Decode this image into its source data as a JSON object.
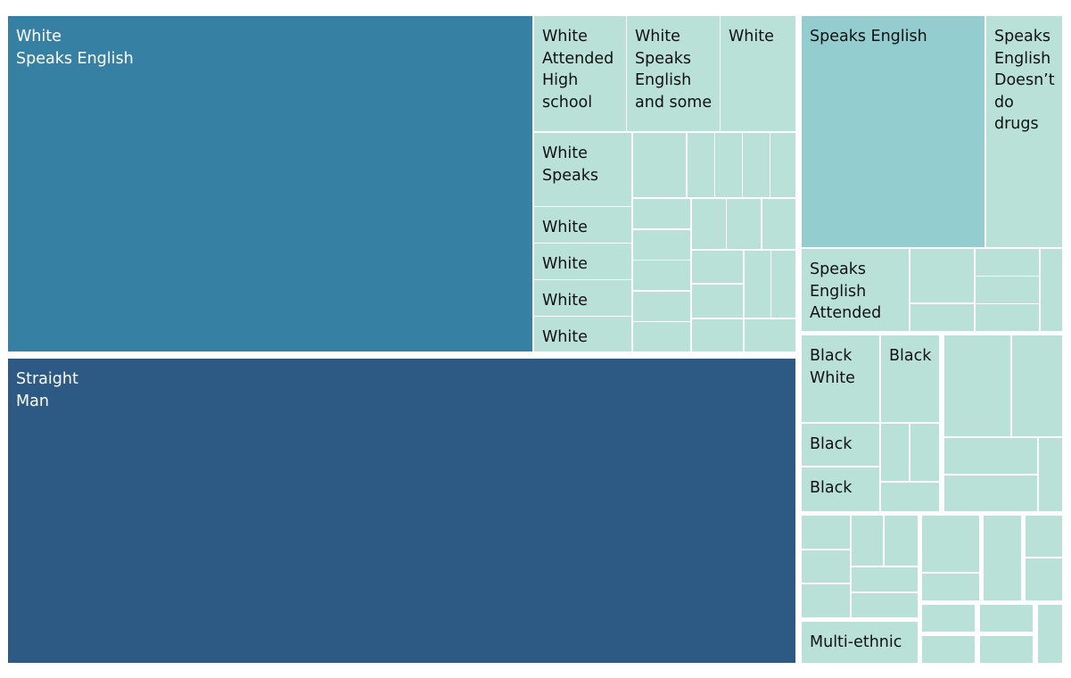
{
  "chart_data": {
    "type": "treemap",
    "colors": {
      "primary_group_1": "#3680a3",
      "primary_group_2": "#2d5a85",
      "secondary_group": "#93cdcf",
      "default_leaf": "#b9e1d8",
      "border": "#ffffff"
    },
    "labels": {
      "white_speaks_english": "White\nSpeaks English",
      "straight_man": "Straight\nMan",
      "white_attended_high_school": "White\nAttended\nHigh\nschool",
      "white_speaks_english_and_some": "White\nSpeaks\nEnglish\nand some",
      "white_a": "White",
      "white_speaks": "White\nSpeaks",
      "white_b": "White",
      "white_c": "White",
      "white_d": "White",
      "white_e": "White",
      "speaks_english": "Speaks English",
      "speaks_english_doesnt_do_drugs": "Speaks\nEnglish\nDoesn’t\ndo\ndrugs",
      "speaks_english_attended": "Speaks\nEnglish\nAttended",
      "black_white": "Black\nWhite",
      "black_a": "Black",
      "black_b": "Black",
      "black_c": "Black",
      "multi_ethnic": "Multi-ethnic"
    }
  }
}
